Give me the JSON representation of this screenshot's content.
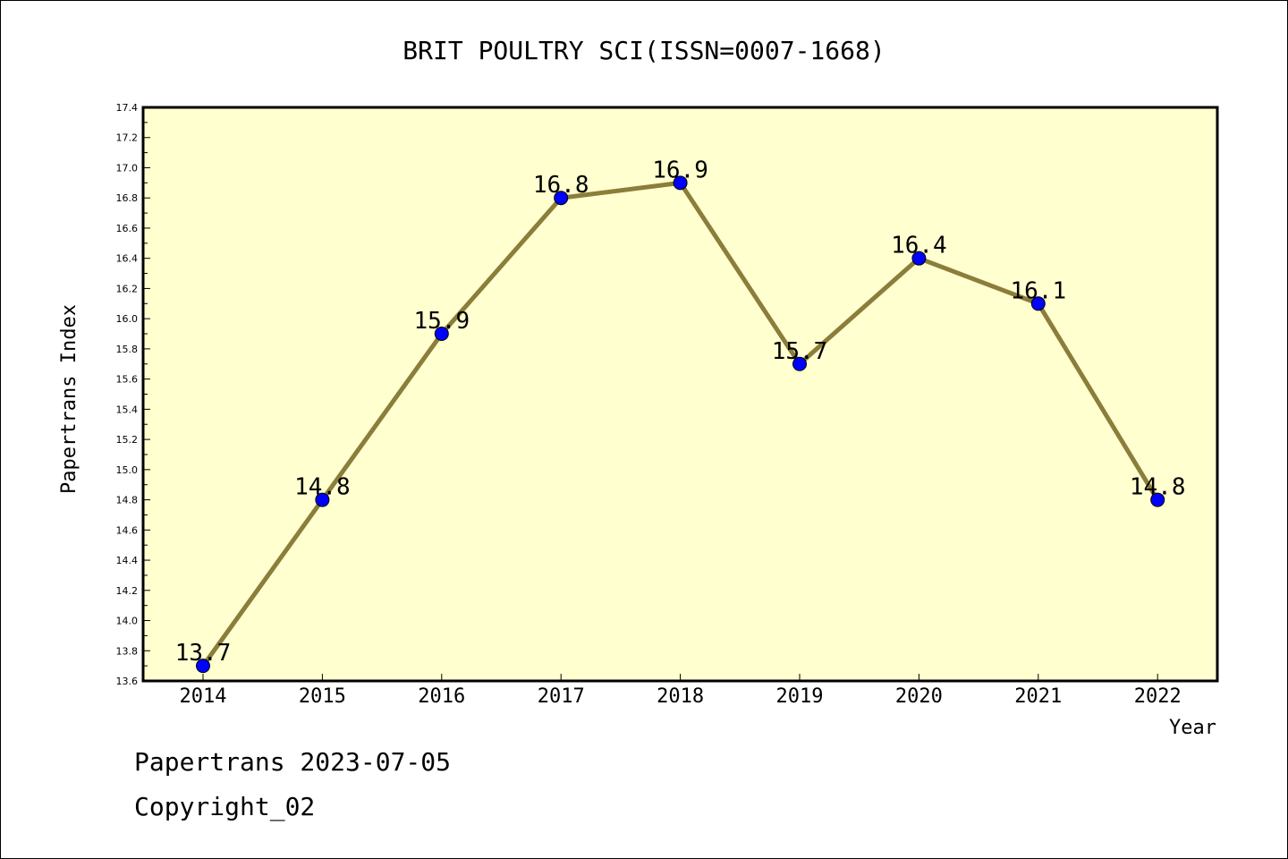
{
  "chart_data": {
    "type": "line",
    "title": "BRIT POULTRY SCI(ISSN=0007-1668)",
    "xlabel": "Year",
    "ylabel": "Papertrans Index",
    "categories": [
      "2014",
      "2015",
      "2016",
      "2017",
      "2018",
      "2019",
      "2020",
      "2021",
      "2022"
    ],
    "values": [
      13.7,
      14.8,
      15.9,
      16.8,
      16.9,
      15.7,
      16.4,
      16.1,
      14.8
    ],
    "data_labels": [
      "13.7",
      "14.8",
      "15.9",
      "16.8",
      "16.9",
      "15.7",
      "16.4",
      "16.1",
      "14.8"
    ],
    "ylim": [
      13.6,
      17.4
    ],
    "yticks": [
      "13.6",
      "13.8",
      "14.0",
      "14.2",
      "14.4",
      "14.6",
      "14.8",
      "15.0",
      "15.2",
      "15.4",
      "15.6",
      "15.8",
      "16.0",
      "16.2",
      "16.4",
      "16.6",
      "16.8",
      "17.0",
      "17.2",
      "17.4"
    ],
    "grid": false,
    "legend": "none",
    "colors": {
      "plot_background": "#ffffd0",
      "line": "#8b7d3a",
      "marker": "#0000ff"
    }
  },
  "footer": {
    "line1": "Papertrans 2023-07-05",
    "line2": "Copyright_02"
  }
}
